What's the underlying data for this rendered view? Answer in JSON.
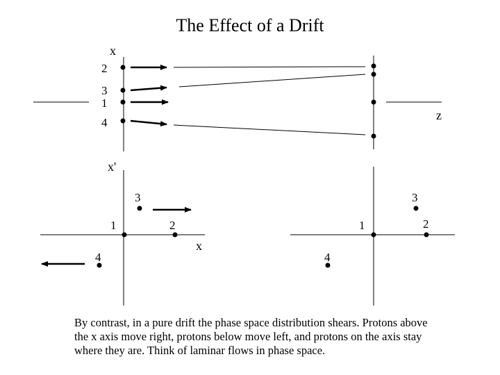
{
  "title": "The Effect of a Drift",
  "top_panel": {
    "axis_vertical_label": "x",
    "axis_horizontal_label": "z",
    "particle_labels": [
      "2",
      "3",
      "1",
      "4"
    ]
  },
  "bottom_left_panel": {
    "axis_vertical_label": "x'",
    "axis_horizontal_label": "x",
    "particle_labels": [
      "3",
      "1",
      "2",
      "4"
    ]
  },
  "bottom_right_panel": {
    "particle_labels": [
      "3",
      "1",
      "2",
      "4"
    ]
  },
  "caption": "By contrast, in a pure drift the phase space distribution shears. Protons above the x axis move right, protons below move left, and protons on the axis stay where they are. Think of laminar flows in phase space."
}
